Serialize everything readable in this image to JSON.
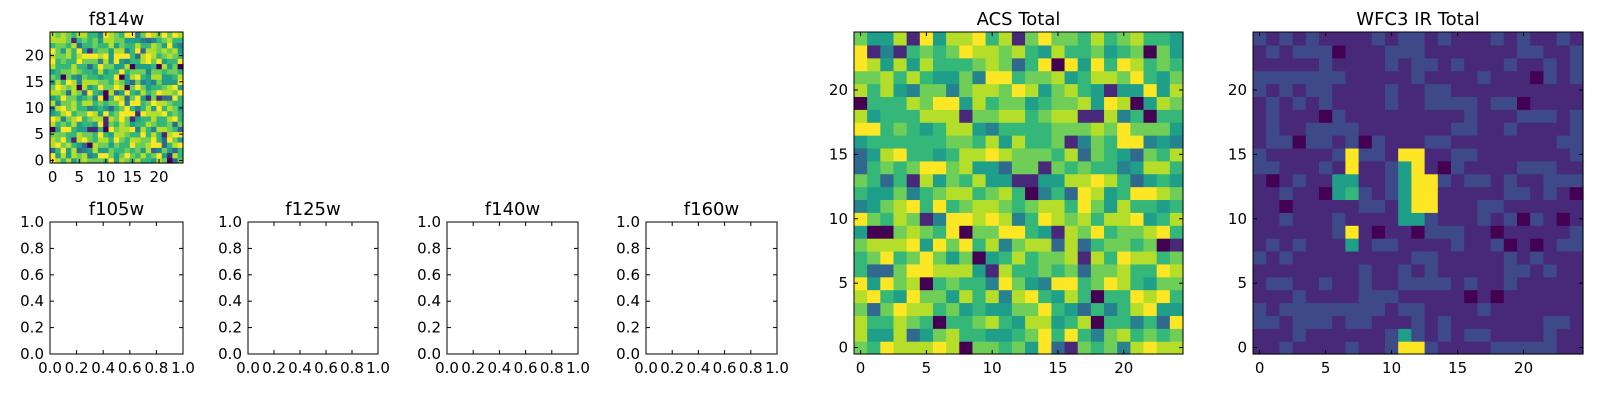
{
  "chart_data": [
    {
      "type": "heatmap",
      "title": "f814w",
      "xlim": [
        -0.5,
        24.5
      ],
      "ylim": [
        -0.5,
        24.5
      ],
      "xticks": [
        0,
        5,
        10,
        15,
        20
      ],
      "yticks": [
        0,
        5,
        10,
        15,
        20
      ],
      "colormap": "viridis",
      "pattern": "noise_high"
    },
    {
      "type": "heatmap",
      "title": "f105w",
      "xlim": [
        0,
        1
      ],
      "ylim": [
        0,
        1
      ],
      "xticks": [
        "0.0",
        "0.2",
        "0.4",
        "0.6",
        "0.8",
        "1.0"
      ],
      "yticks": [
        "0.0",
        "0.2",
        "0.4",
        "0.6",
        "0.8",
        "1.0"
      ],
      "empty": true
    },
    {
      "type": "heatmap",
      "title": "f125w",
      "xlim": [
        0,
        1
      ],
      "ylim": [
        0,
        1
      ],
      "xticks": [
        "0.0",
        "0.2",
        "0.4",
        "0.6",
        "0.8",
        "1.0"
      ],
      "yticks": [
        "0.0",
        "0.2",
        "0.4",
        "0.6",
        "0.8",
        "1.0"
      ],
      "empty": true
    },
    {
      "type": "heatmap",
      "title": "f140w",
      "xlim": [
        0,
        1
      ],
      "ylim": [
        0,
        1
      ],
      "xticks": [
        "0.0",
        "0.2",
        "0.4",
        "0.6",
        "0.8",
        "1.0"
      ],
      "yticks": [
        "0.0",
        "0.2",
        "0.4",
        "0.6",
        "0.8",
        "1.0"
      ],
      "empty": true
    },
    {
      "type": "heatmap",
      "title": "f160w",
      "xlim": [
        0,
        1
      ],
      "ylim": [
        0,
        1
      ],
      "xticks": [
        "0.0",
        "0.2",
        "0.4",
        "0.6",
        "0.8",
        "1.0"
      ],
      "yticks": [
        "0.0",
        "0.2",
        "0.4",
        "0.6",
        "0.8",
        "1.0"
      ],
      "empty": true
    },
    {
      "type": "heatmap",
      "title": "ACS Total",
      "xlim": [
        -0.5,
        24.5
      ],
      "ylim": [
        -0.5,
        24.5
      ],
      "xticks": [
        0,
        5,
        10,
        15,
        20
      ],
      "yticks": [
        0,
        5,
        10,
        15,
        20
      ],
      "colormap": "viridis",
      "pattern": "noise_high"
    },
    {
      "type": "heatmap",
      "title": "WFC3 IR Total",
      "xlim": [
        -0.5,
        24.5
      ],
      "ylim": [
        -0.5,
        24.5
      ],
      "xticks": [
        0,
        5,
        10,
        15,
        20
      ],
      "yticks": [
        0,
        5,
        10,
        15,
        20
      ],
      "colormap": "viridis",
      "pattern": "sparse_sources",
      "bright_pixels": [
        [
          7,
          15
        ],
        [
          7,
          14
        ],
        [
          11,
          15
        ],
        [
          12,
          15
        ],
        [
          12,
          14
        ],
        [
          12,
          13
        ],
        [
          13,
          13
        ],
        [
          12,
          12
        ],
        [
          13,
          12
        ],
        [
          12,
          11
        ],
        [
          13,
          11
        ],
        [
          7,
          9
        ],
        [
          11,
          0
        ],
        [
          12,
          0
        ]
      ],
      "mid_pixels": [
        [
          6,
          13
        ],
        [
          7,
          13
        ],
        [
          6,
          12
        ],
        [
          7,
          12
        ],
        [
          11,
          14
        ],
        [
          11,
          13
        ],
        [
          11,
          12
        ],
        [
          11,
          11
        ],
        [
          11,
          10
        ],
        [
          12,
          10
        ],
        [
          7,
          8
        ],
        [
          11,
          1
        ]
      ]
    }
  ]
}
